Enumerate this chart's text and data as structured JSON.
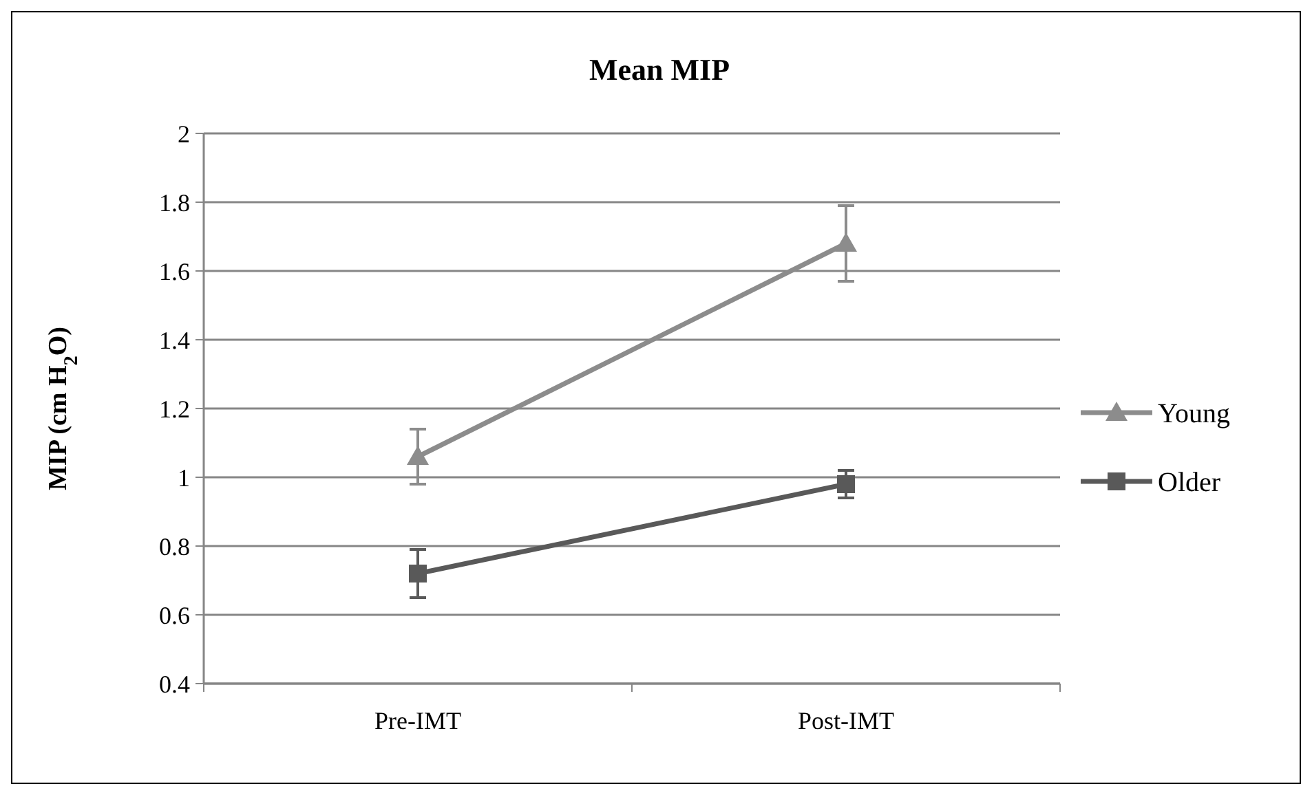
{
  "chart_data": {
    "type": "line",
    "title": "Mean MIP",
    "ylabel": "MIP (cm H$_{2}$O)",
    "categories": [
      "Pre-IMT",
      "Post-IMT"
    ],
    "series": [
      {
        "name": "Young",
        "color": "#8c8c8c",
        "values": [
          1.06,
          1.68
        ],
        "errors": [
          0.08,
          0.11
        ],
        "marker": "triangle"
      },
      {
        "name": "Older",
        "color": "#595959",
        "values": [
          0.72,
          0.98
        ],
        "errors": [
          0.07,
          0.04
        ],
        "marker": "square"
      }
    ],
    "ylim": [
      0.4,
      2
    ],
    "yticks": [
      0.4,
      0.6,
      0.8,
      1,
      1.2,
      1.4,
      1.6,
      1.8,
      2
    ],
    "grid": "y",
    "legend": "right"
  }
}
